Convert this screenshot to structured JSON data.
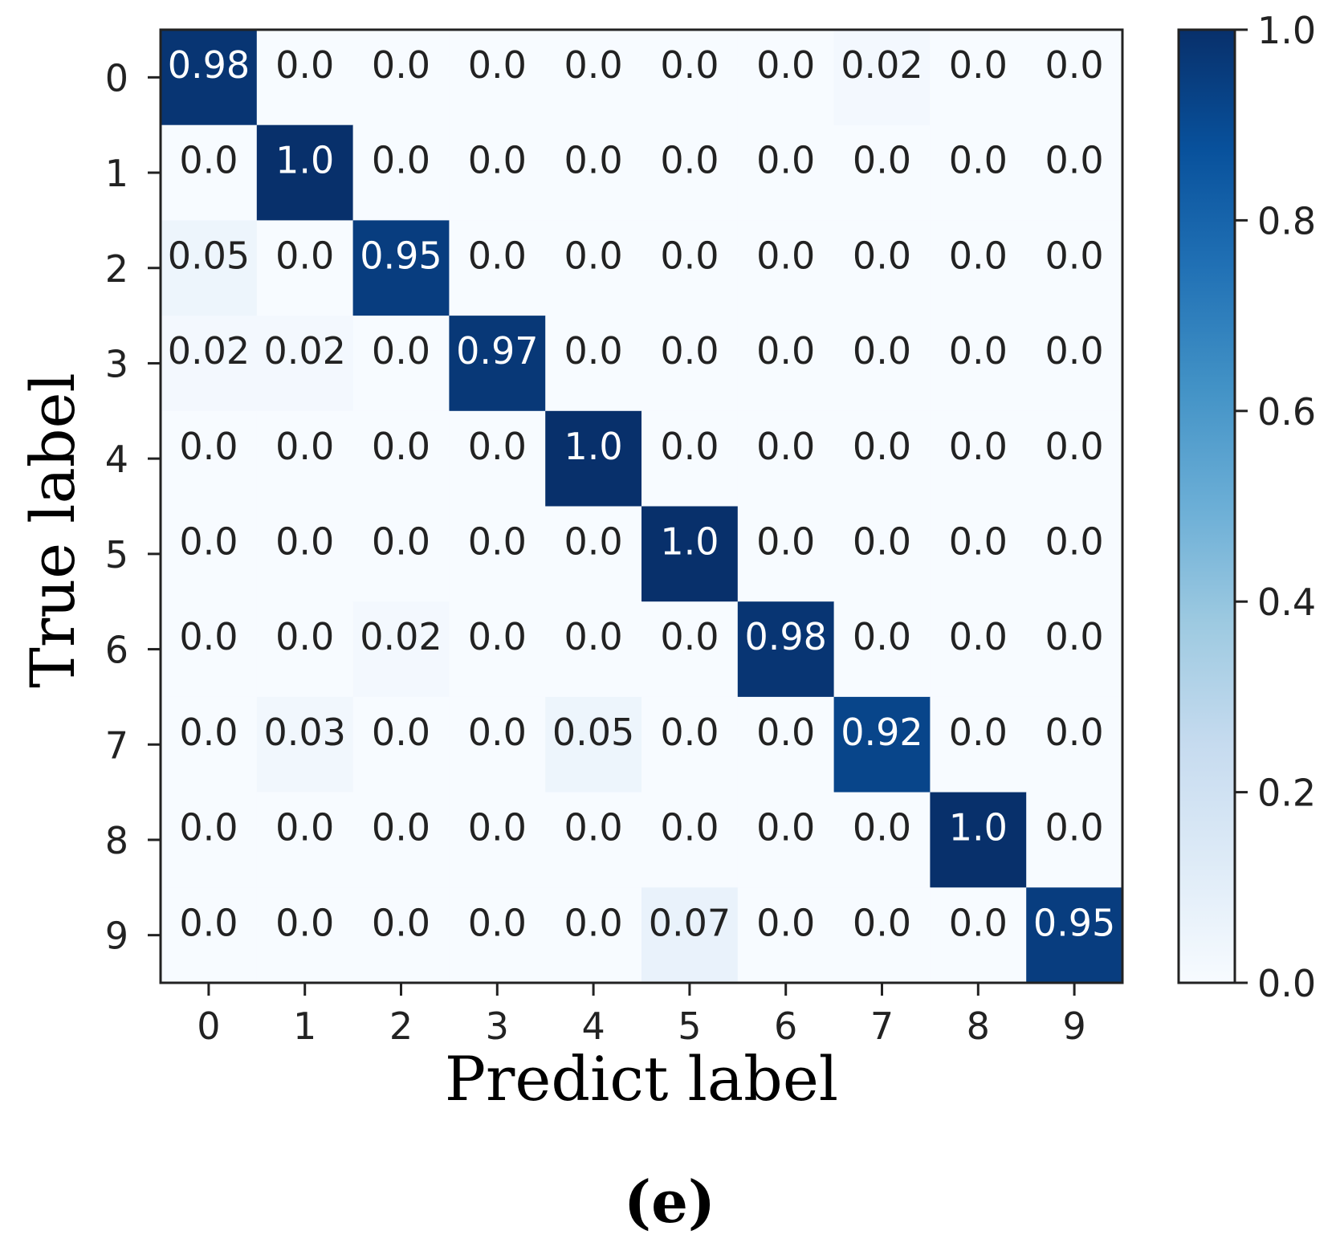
{
  "chart_data": {
    "type": "heatmap",
    "x_categories": [
      "0",
      "1",
      "2",
      "3",
      "4",
      "5",
      "6",
      "7",
      "8",
      "9"
    ],
    "y_categories": [
      "0",
      "1",
      "2",
      "3",
      "4",
      "5",
      "6",
      "7",
      "8",
      "9"
    ],
    "matrix": [
      [
        0.98,
        0.0,
        0.0,
        0.0,
        0.0,
        0.0,
        0.0,
        0.02,
        0.0,
        0.0
      ],
      [
        0.0,
        1.0,
        0.0,
        0.0,
        0.0,
        0.0,
        0.0,
        0.0,
        0.0,
        0.0
      ],
      [
        0.05,
        0.0,
        0.95,
        0.0,
        0.0,
        0.0,
        0.0,
        0.0,
        0.0,
        0.0
      ],
      [
        0.02,
        0.02,
        0.0,
        0.97,
        0.0,
        0.0,
        0.0,
        0.0,
        0.0,
        0.0
      ],
      [
        0.0,
        0.0,
        0.0,
        0.0,
        1.0,
        0.0,
        0.0,
        0.0,
        0.0,
        0.0
      ],
      [
        0.0,
        0.0,
        0.0,
        0.0,
        0.0,
        1.0,
        0.0,
        0.0,
        0.0,
        0.0
      ],
      [
        0.0,
        0.0,
        0.02,
        0.0,
        0.0,
        0.0,
        0.98,
        0.0,
        0.0,
        0.0
      ],
      [
        0.0,
        0.03,
        0.0,
        0.0,
        0.05,
        0.0,
        0.0,
        0.92,
        0.0,
        0.0
      ],
      [
        0.0,
        0.0,
        0.0,
        0.0,
        0.0,
        0.0,
        0.0,
        0.0,
        1.0,
        0.0
      ],
      [
        0.0,
        0.0,
        0.0,
        0.0,
        0.0,
        0.07,
        0.0,
        0.0,
        0.0,
        0.95
      ]
    ],
    "cell_labels": [
      [
        "0.98",
        "0.0",
        "0.0",
        "0.0",
        "0.0",
        "0.0",
        "0.0",
        "0.02",
        "0.0",
        "0.0"
      ],
      [
        "0.0",
        "1.0",
        "0.0",
        "0.0",
        "0.0",
        "0.0",
        "0.0",
        "0.0",
        "0.0",
        "0.0"
      ],
      [
        "0.05",
        "0.0",
        "0.95",
        "0.0",
        "0.0",
        "0.0",
        "0.0",
        "0.0",
        "0.0",
        "0.0"
      ],
      [
        "0.02",
        "0.02",
        "0.0",
        "0.97",
        "0.0",
        "0.0",
        "0.0",
        "0.0",
        "0.0",
        "0.0"
      ],
      [
        "0.0",
        "0.0",
        "0.0",
        "0.0",
        "1.0",
        "0.0",
        "0.0",
        "0.0",
        "0.0",
        "0.0"
      ],
      [
        "0.0",
        "0.0",
        "0.0",
        "0.0",
        "0.0",
        "1.0",
        "0.0",
        "0.0",
        "0.0",
        "0.0"
      ],
      [
        "0.0",
        "0.0",
        "0.02",
        "0.0",
        "0.0",
        "0.0",
        "0.98",
        "0.0",
        "0.0",
        "0.0"
      ],
      [
        "0.0",
        "0.03",
        "0.0",
        "0.0",
        "0.05",
        "0.0",
        "0.0",
        "0.92",
        "0.0",
        "0.0"
      ],
      [
        "0.0",
        "0.0",
        "0.0",
        "0.0",
        "0.0",
        "0.0",
        "0.0",
        "0.0",
        "1.0",
        "0.0"
      ],
      [
        "0.0",
        "0.0",
        "0.0",
        "0.0",
        "0.0",
        "0.07",
        "0.0",
        "0.0",
        "0.0",
        "0.95"
      ]
    ],
    "xlabel": "Predict label",
    "ylabel": "True label",
    "colorbar": {
      "range": [
        0.0,
        1.0
      ],
      "ticks": [
        0.0,
        0.2,
        0.4,
        0.6,
        0.8,
        1.0
      ],
      "tick_labels": [
        "0.0",
        "0.2",
        "0.4",
        "0.6",
        "0.8",
        "1.0"
      ],
      "colormap": "Blues",
      "color_low": "#f7fbff",
      "color_high": "#08306b"
    }
  },
  "caption": "(e)"
}
